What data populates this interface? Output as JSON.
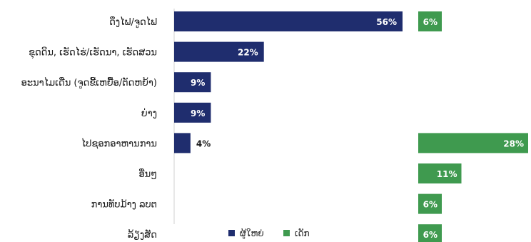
{
  "colors": {
    "adults": "#1f2d6e",
    "children": "#3f9a4f",
    "axis": "#d0d0d0"
  },
  "chart_data": {
    "type": "bar",
    "orientation": "horizontal",
    "categories": [
      "ດຶງໄຟ/ຈູດໄຟ",
      "ຂຸດດິນ, ເຮັດໄຮ່/ເຮັດນາ, ເຮັດສວນ",
      "ອະນາໄມເດີ່ນ (ຈູດຂີ້ເຫຍື້ອ/ຕັດຫຍ້າ)",
      "ຍ່າງ",
      "ໄປຊອກອາຫານການ",
      "ອື່ນໆ",
      "ການທັບມ້າງ ລບຕ",
      "ລ້ຽງສັດ"
    ],
    "series": [
      {
        "name": "ຜູ້ໃຫຍ່",
        "values": [
          56,
          22,
          9,
          9,
          4,
          null,
          null,
          null
        ]
      },
      {
        "name": "ເດັກ",
        "values": [
          6,
          null,
          null,
          null,
          28,
          11,
          6,
          6
        ]
      }
    ],
    "value_suffix": "%",
    "legend": {
      "placement": "bottom"
    }
  }
}
